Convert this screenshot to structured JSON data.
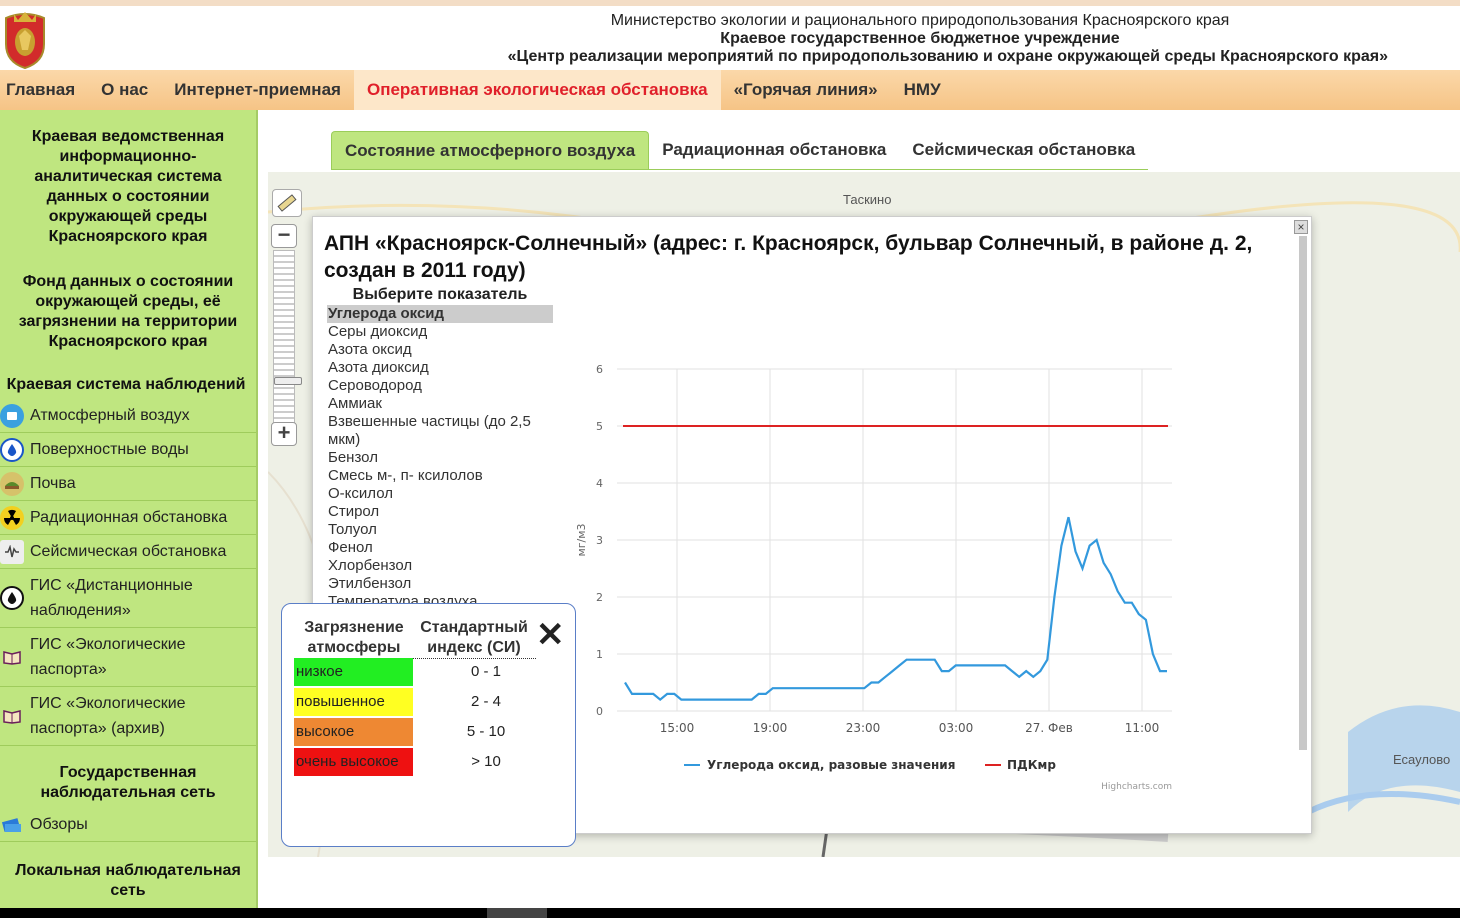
{
  "header": {
    "line1": "Министерство экологии и рационального природопользования Красноярского края",
    "line2": "Краевое государственное бюджетное учреждение",
    "line3": "«Центр реализации мероприятий по природопользованию и охране окружающей среды Красноярского края»"
  },
  "nav": [
    "Главная",
    "О нас",
    "Интернет-приемная",
    "Оперативная экологическая обстановка",
    "«Горячая линия»",
    "НМУ"
  ],
  "sidebar": {
    "heading1": "Краевая ведомственная информационно-аналитическая система данных о состоянии окружающей среды Красноярского края",
    "heading2": "Фонд данных о состоянии окружающей среды, её загрязнении на территории Красноярского края",
    "heading3": "Краевая система наблюдений",
    "items": [
      {
        "label": "Атмосферный воздух",
        "icon": "air-icon"
      },
      {
        "label": "Поверхностные воды",
        "icon": "water-drop-icon"
      },
      {
        "label": "Почва",
        "icon": "soil-icon"
      },
      {
        "label": "Радиационная обстановка",
        "icon": "radiation-icon"
      },
      {
        "label": "Сейсмическая обстановка",
        "icon": "seismic-icon"
      },
      {
        "label": "ГИС «Дистанционные наблюдения»",
        "icon": "oil-drop-icon"
      },
      {
        "label": "ГИС «Экологические паспорта»",
        "icon": "book-icon"
      },
      {
        "label": "ГИС «Экологические паспорта» (архив)",
        "icon": "book-icon"
      }
    ],
    "heading4": "Государственная наблюдательная сеть",
    "reviews": "Обзоры",
    "heading5": "Локальная наблюдательная сеть"
  },
  "tabs": [
    "Состояние атмосферного воздуха",
    "Радиационная обстановка",
    "Сейсмическая обстановка"
  ],
  "map": {
    "labels": [
      "Таскино",
      "Есаулово"
    ]
  },
  "popup": {
    "title": "АПН «Красноярск-Солнечный» (адрес: г. Красноярск, бульвар Солнечный, в районе д. 2, создан в 2011 году)",
    "close": "×",
    "indicator_heading": "Выберите показатель",
    "indicators": [
      "Углерода оксид",
      "Серы диоксид",
      "Азота оксид",
      "Азота диоксид",
      "Сероводород",
      "Аммиак",
      "Взвешенные частицы (до 2,5 мкм)",
      "Бензол",
      "Смесь м-, п- ксилолов",
      "О-ксилол",
      "Стирол",
      "Толуол",
      "Фенол",
      "Хлорбензол",
      "Этилбензол",
      "Температура воздуха"
    ],
    "selected": 0
  },
  "legend": {
    "header1": "Загрязнение атмосферы",
    "header2": "Стандартный индекс (СИ)",
    "close": "✕",
    "rows": [
      {
        "label": "низкое",
        "value": "0 - 1",
        "color": "#22ee22"
      },
      {
        "label": "повышенное",
        "value": "2 - 4",
        "color": "#ffff22"
      },
      {
        "label": "высокое",
        "value": "5 - 10",
        "color": "#ee8833"
      },
      {
        "label": "очень высокое",
        "value": "> 10",
        "color": "#ee1111"
      }
    ]
  },
  "chart_data": {
    "type": "line",
    "ylabel": "мг/м3",
    "ylim": [
      0,
      6
    ],
    "yticks": [
      0,
      1,
      2,
      3,
      4,
      5,
      6
    ],
    "xtick_labels": [
      "15:00",
      "19:00",
      "23:00",
      "03:00",
      "27. Фев",
      "11:00"
    ],
    "grid": true,
    "legend_position": "bottom",
    "credits": "Highcharts.com",
    "series": [
      {
        "name": "Углерода оксид, разовые значения",
        "color": "#3399dd",
        "values": [
          0.5,
          0.3,
          0.3,
          0.3,
          0.3,
          0.2,
          0.3,
          0.3,
          0.2,
          0.2,
          0.2,
          0.2,
          0.2,
          0.2,
          0.2,
          0.2,
          0.2,
          0.2,
          0.2,
          0.3,
          0.3,
          0.4,
          0.4,
          0.4,
          0.4,
          0.4,
          0.4,
          0.4,
          0.4,
          0.4,
          0.4,
          0.4,
          0.4,
          0.4,
          0.4,
          0.5,
          0.5,
          0.6,
          0.7,
          0.8,
          0.9,
          0.9,
          0.9,
          0.9,
          0.9,
          0.7,
          0.7,
          0.8,
          0.8,
          0.8,
          0.8,
          0.8,
          0.8,
          0.8,
          0.8,
          0.7,
          0.6,
          0.7,
          0.6,
          0.7,
          0.9,
          2.0,
          2.9,
          3.4,
          2.8,
          2.5,
          2.9,
          3.0,
          2.6,
          2.4,
          2.1,
          1.9,
          1.9,
          1.7,
          1.6,
          1.0,
          0.7,
          0.7
        ]
      },
      {
        "name": "ПДКмр",
        "color": "#dd2222",
        "values": [
          5,
          5
        ]
      }
    ]
  }
}
